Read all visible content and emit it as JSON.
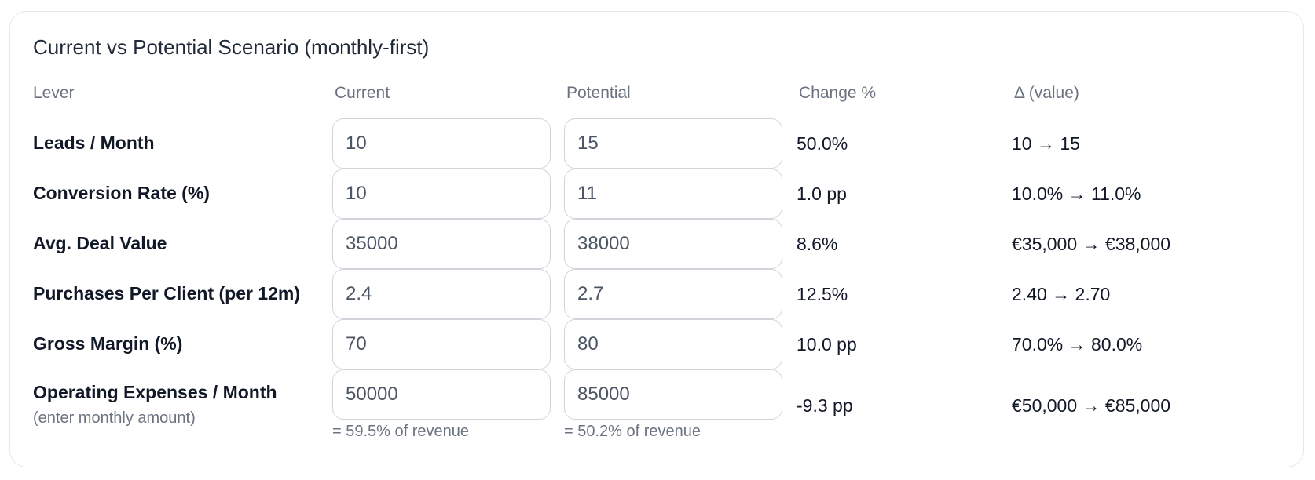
{
  "title": "Current vs Potential Scenario (monthly-first)",
  "headers": {
    "lever": "Lever",
    "current": "Current",
    "potential": "Potential",
    "change": "Change %",
    "delta": "Δ (value)"
  },
  "rows": [
    {
      "label": "Leads / Month",
      "current": "10",
      "potential": "15",
      "change": "50.0%",
      "delta": "10 → 15"
    },
    {
      "label": "Conversion Rate (%)",
      "current": "10",
      "potential": "11",
      "change": "1.0 pp",
      "delta": "10.0% → 11.0%"
    },
    {
      "label": "Avg. Deal Value",
      "current": "35000",
      "potential": "38000",
      "change": "8.6%",
      "delta": "€35,000 → €38,000"
    },
    {
      "label": "Purchases Per Client (per 12m)",
      "current": "2.4",
      "potential": "2.7",
      "change": "12.5%",
      "delta": "2.40 → 2.70"
    },
    {
      "label": "Gross Margin (%)",
      "current": "70",
      "potential": "80",
      "change": "10.0 pp",
      "delta": "70.0% → 80.0%"
    },
    {
      "label": "Operating Expenses / Month",
      "sublabel": "(enter monthly amount)",
      "current": "50000",
      "potential": "85000",
      "current_note": "= 59.5% of revenue",
      "potential_note": "= 50.2% of revenue",
      "change": "-9.3 pp",
      "delta": "€50,000 → €85,000"
    }
  ]
}
